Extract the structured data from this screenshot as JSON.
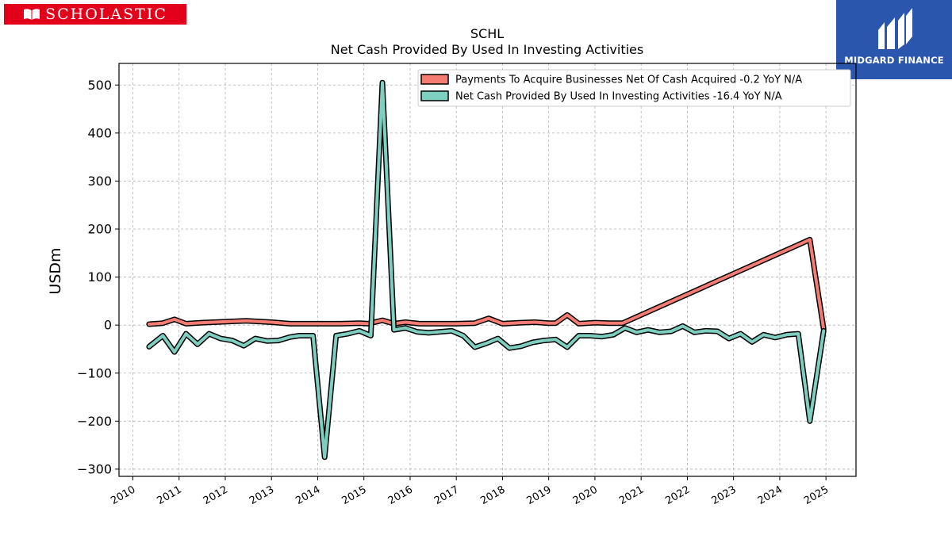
{
  "brand": {
    "left_logo_text": "SCHOLASTIC",
    "right_logo_text": "MIDGARD FINANCE",
    "left_logo_color": "#e3001b",
    "right_logo_color": "#2a57ad"
  },
  "chart_data": {
    "type": "line",
    "title": "SCHL",
    "subtitle": "Net Cash Provided By Used In Investing Activities",
    "ylabel": "USDm",
    "xlabel": "",
    "xlim": [
      2009.7,
      2025.65
    ],
    "ylim": [
      -315,
      545
    ],
    "yticks": [
      -300,
      -200,
      -100,
      0,
      100,
      200,
      300,
      400,
      500
    ],
    "ytick_labels": [
      "−300",
      "−200",
      "−100",
      "0",
      "100",
      "200",
      "300",
      "400",
      "500"
    ],
    "xticks": [
      2010,
      2011,
      2012,
      2013,
      2014,
      2015,
      2016,
      2017,
      2018,
      2019,
      2020,
      2021,
      2022,
      2023,
      2024,
      2025
    ],
    "xtick_labels": [
      "2010",
      "2011",
      "2012",
      "2013",
      "2014",
      "2015",
      "2016",
      "2017",
      "2018",
      "2019",
      "2020",
      "2021",
      "2022",
      "2023",
      "2024",
      "2025"
    ],
    "grid": true,
    "legend_position": "top-right",
    "series": [
      {
        "name": "Payments To Acquire Businesses Net Of Cash Acquired  -0.2 YoY N/A",
        "color": "#f47c72",
        "x": [
          2010.35,
          2010.65,
          2010.9,
          2011.15,
          2011.5,
          2012.0,
          2012.45,
          2013.0,
          2013.4,
          2013.9,
          2014.5,
          2014.9,
          2015.1,
          2015.4,
          2015.65,
          2015.9,
          2016.2,
          2016.5,
          2017.0,
          2017.4,
          2017.7,
          2018.0,
          2018.4,
          2018.7,
          2019.0,
          2019.15,
          2019.4,
          2019.65,
          2020.0,
          2020.3,
          2020.6,
          2024.35,
          2024.65,
          2024.95
        ],
        "y": [
          2,
          4,
          12,
          3,
          5,
          7,
          9,
          6,
          3,
          3,
          3,
          4,
          3,
          10,
          3,
          6,
          3,
          3,
          3,
          4,
          14,
          3,
          5,
          6,
          4,
          4,
          21,
          3,
          5,
          4,
          4,
          165,
          178,
          -8
        ]
      },
      {
        "name": "Net Cash Provided By Used In Investing Activities  -16.4 YoY N/A",
        "color": "#7fcfc1",
        "x": [
          2010.35,
          2010.65,
          2010.9,
          2011.15,
          2011.4,
          2011.65,
          2011.9,
          2012.15,
          2012.4,
          2012.65,
          2012.9,
          2013.15,
          2013.4,
          2013.6,
          2013.9,
          2014.15,
          2014.4,
          2014.65,
          2014.9,
          2015.15,
          2015.4,
          2015.65,
          2015.9,
          2016.15,
          2016.4,
          2016.65,
          2016.9,
          2017.15,
          2017.4,
          2017.65,
          2017.9,
          2018.15,
          2018.4,
          2018.65,
          2018.9,
          2019.15,
          2019.4,
          2019.65,
          2019.9,
          2020.15,
          2020.4,
          2020.65,
          2020.9,
          2021.15,
          2021.4,
          2021.65,
          2021.9,
          2022.15,
          2022.4,
          2022.65,
          2022.9,
          2023.15,
          2023.4,
          2023.65,
          2023.9,
          2024.15,
          2024.4,
          2024.65,
          2024.95
        ],
        "y": [
          -45,
          -22,
          -56,
          -18,
          -40,
          -18,
          -28,
          -32,
          -43,
          -28,
          -33,
          -32,
          -25,
          -22,
          -22,
          -275,
          -22,
          -18,
          -12,
          -22,
          505,
          -10,
          -6,
          -14,
          -16,
          -14,
          -12,
          -22,
          -46,
          -38,
          -28,
          -48,
          -44,
          -36,
          -32,
          -30,
          -46,
          -22,
          -22,
          -24,
          -20,
          -6,
          -15,
          -10,
          -15,
          -13,
          -2,
          -15,
          -12,
          -13,
          -28,
          -18,
          -35,
          -20,
          -26,
          -20,
          -18,
          -200,
          -12
        ]
      }
    ]
  }
}
